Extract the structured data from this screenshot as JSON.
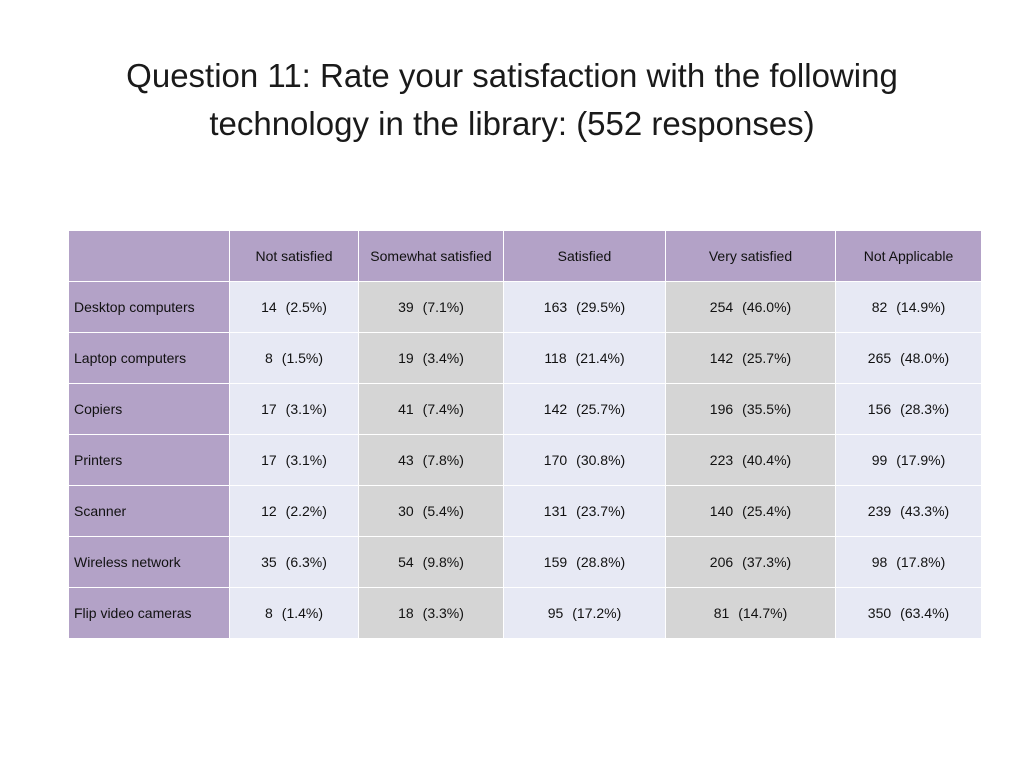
{
  "title": {
    "line1": "Question 11:  Rate your satisfaction with the following",
    "line2": "technology in the library: (552 responses)"
  },
  "table": {
    "columns": [
      "Not satisfied",
      "Somewhat satisfied",
      "Satisfied",
      "Very satisfied",
      "Not Applicable"
    ],
    "rows": [
      {
        "label": "Desktop computers",
        "cells": [
          {
            "count": "14",
            "pct": "(2.5%)"
          },
          {
            "count": "39",
            "pct": "(7.1%)"
          },
          {
            "count": "163",
            "pct": "(29.5%)"
          },
          {
            "count": "254",
            "pct": "(46.0%)"
          },
          {
            "count": "82",
            "pct": "(14.9%)"
          }
        ]
      },
      {
        "label": "Laptop computers",
        "cells": [
          {
            "count": "8",
            "pct": "(1.5%)"
          },
          {
            "count": "19",
            "pct": "(3.4%)"
          },
          {
            "count": "118",
            "pct": "(21.4%)"
          },
          {
            "count": "142",
            "pct": "(25.7%)"
          },
          {
            "count": "265",
            "pct": "(48.0%)"
          }
        ]
      },
      {
        "label": "Copiers",
        "cells": [
          {
            "count": "17",
            "pct": "(3.1%)"
          },
          {
            "count": "41",
            "pct": "(7.4%)"
          },
          {
            "count": "142",
            "pct": "(25.7%)"
          },
          {
            "count": "196",
            "pct": "(35.5%)"
          },
          {
            "count": "156",
            "pct": "(28.3%)"
          }
        ]
      },
      {
        "label": "Printers",
        "cells": [
          {
            "count": "17",
            "pct": "(3.1%)"
          },
          {
            "count": "43",
            "pct": "(7.8%)"
          },
          {
            "count": "170",
            "pct": "(30.8%)"
          },
          {
            "count": "223",
            "pct": "(40.4%)"
          },
          {
            "count": "99",
            "pct": "(17.9%)"
          }
        ]
      },
      {
        "label": "Scanner",
        "cells": [
          {
            "count": "12",
            "pct": "(2.2%)"
          },
          {
            "count": "30",
            "pct": "(5.4%)"
          },
          {
            "count": "131",
            "pct": "(23.7%)"
          },
          {
            "count": "140",
            "pct": "(25.4%)"
          },
          {
            "count": "239",
            "pct": "(43.3%)"
          }
        ]
      },
      {
        "label": "Wireless network",
        "cells": [
          {
            "count": "35",
            "pct": "(6.3%)"
          },
          {
            "count": "54",
            "pct": "(9.8%)"
          },
          {
            "count": "159",
            "pct": "(28.8%)"
          },
          {
            "count": "206",
            "pct": "(37.3%)"
          },
          {
            "count": "98",
            "pct": "(17.8%)"
          }
        ]
      },
      {
        "label": "Flip video cameras",
        "cells": [
          {
            "count": "8",
            "pct": "(1.4%)"
          },
          {
            "count": "18",
            "pct": "(3.3%)"
          },
          {
            "count": "95",
            "pct": "(17.2%)"
          },
          {
            "count": "81",
            "pct": "(14.7%)"
          },
          {
            "count": "350",
            "pct": "(63.4%)"
          }
        ]
      }
    ]
  },
  "colors": {
    "header_fill": "#b3a2c7",
    "cell_light": "#e7e9f4",
    "cell_dark": "#d5d5d5",
    "table_border": "#333333"
  }
}
